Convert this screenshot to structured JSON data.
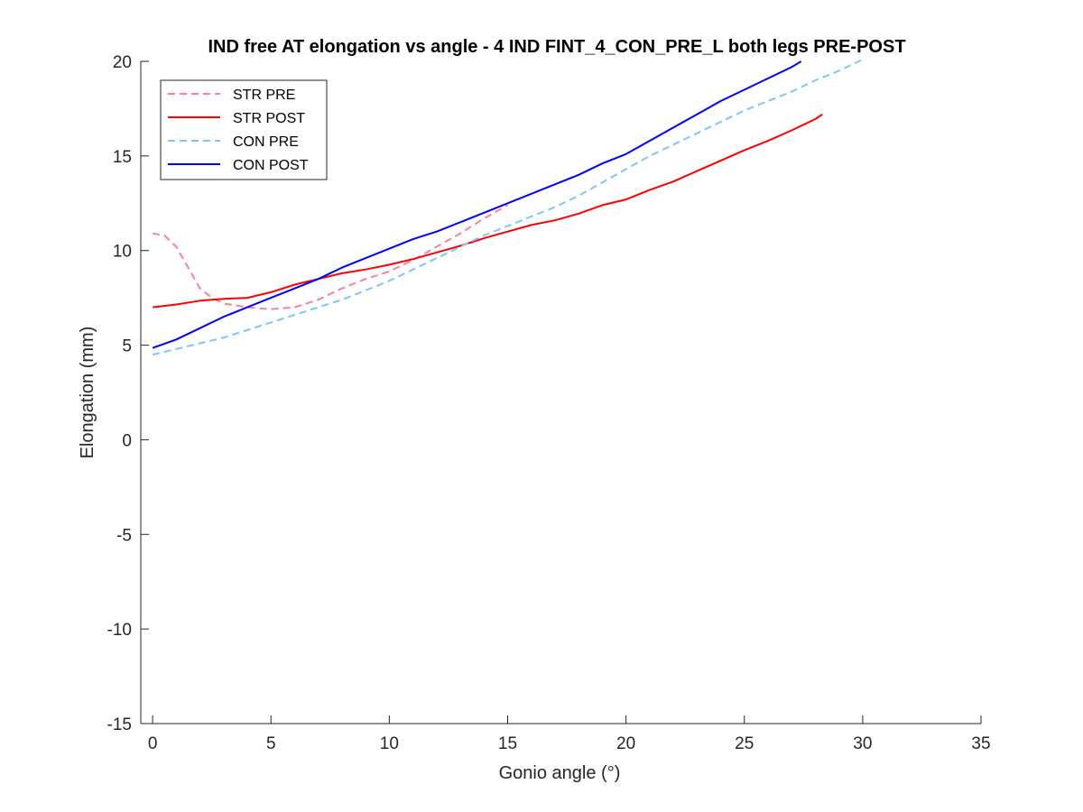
{
  "chart_data": {
    "type": "line",
    "title": "IND free AT elongation vs angle - 4 IND FINT_4_CON_PRE_L both legs PRE-POST",
    "xlabel": "Gonio angle (°)",
    "ylabel": "Elongation (mm)",
    "xlim": [
      -0.5,
      35
    ],
    "ylim": [
      -15,
      20
    ],
    "xticks": [
      0,
      5,
      10,
      15,
      20,
      25,
      30,
      35
    ],
    "yticks": [
      -15,
      -10,
      -5,
      0,
      5,
      10,
      15,
      20
    ],
    "xtick_labels": [
      "0",
      "5",
      "10",
      "15",
      "20",
      "25",
      "30",
      "35"
    ],
    "ytick_labels": [
      "-15",
      "-10",
      "-5",
      "0",
      "5",
      "10",
      "15",
      "20"
    ],
    "grid": false,
    "legend_position": "top-left",
    "series": [
      {
        "name": "STR PRE",
        "color": "#ff7f9f",
        "dash": "dashed",
        "x": [
          0,
          0.5,
          1,
          1.5,
          2,
          2.5,
          3,
          3.5,
          4,
          5,
          6,
          7,
          8,
          9,
          10,
          11,
          12,
          13,
          14,
          15
        ],
        "y": [
          10.9,
          10.8,
          10.2,
          9.1,
          8.0,
          7.5,
          7.2,
          7.1,
          7.0,
          6.9,
          7.0,
          7.4,
          8.0,
          8.5,
          8.9,
          9.5,
          10.2,
          10.9,
          11.7,
          12.4
        ]
      },
      {
        "name": "STR POST",
        "color": "#ff0000",
        "dash": "solid",
        "x": [
          0,
          1,
          2,
          3,
          4,
          5,
          6,
          7,
          8,
          9,
          10,
          11,
          12,
          13,
          14,
          15,
          16,
          17,
          18,
          19,
          20,
          21,
          22,
          23,
          24,
          25,
          26,
          27,
          28,
          28.3
        ],
        "y": [
          7.0,
          7.15,
          7.35,
          7.45,
          7.5,
          7.8,
          8.2,
          8.5,
          8.8,
          9.0,
          9.25,
          9.55,
          9.9,
          10.25,
          10.65,
          11.0,
          11.35,
          11.6,
          11.95,
          12.4,
          12.7,
          13.2,
          13.65,
          14.2,
          14.75,
          15.3,
          15.8,
          16.35,
          16.95,
          17.2
        ]
      },
      {
        "name": "CON PRE",
        "color": "#7ec8f7",
        "dash": "dashed",
        "x": [
          0,
          1,
          2,
          3,
          4,
          5,
          6,
          7,
          8,
          9,
          10,
          11,
          12,
          13,
          14,
          15,
          16,
          17,
          18,
          19,
          20,
          21,
          22,
          23,
          24,
          25,
          26,
          27,
          28,
          29,
          30
        ],
        "y": [
          4.5,
          4.8,
          5.1,
          5.4,
          5.8,
          6.2,
          6.6,
          7.0,
          7.4,
          7.9,
          8.4,
          9.0,
          9.6,
          10.2,
          10.8,
          11.3,
          11.8,
          12.3,
          12.9,
          13.6,
          14.3,
          15.0,
          15.6,
          16.2,
          16.8,
          17.4,
          17.9,
          18.4,
          19.0,
          19.5,
          20.1
        ]
      },
      {
        "name": "CON POST",
        "color": "#0000ff",
        "dash": "solid",
        "x": [
          0,
          1,
          2,
          3,
          4,
          5,
          6,
          7,
          8,
          9,
          10,
          11,
          12,
          13,
          14,
          15,
          16,
          17,
          18,
          19,
          20,
          21,
          22,
          23,
          24,
          25,
          26,
          27,
          27.4
        ],
        "y": [
          4.85,
          5.3,
          5.9,
          6.5,
          7.0,
          7.5,
          8.0,
          8.5,
          9.1,
          9.6,
          10.1,
          10.6,
          11.0,
          11.5,
          12.0,
          12.5,
          13.0,
          13.5,
          14.0,
          14.6,
          15.1,
          15.8,
          16.5,
          17.2,
          17.9,
          18.5,
          19.1,
          19.7,
          20.0
        ]
      }
    ]
  }
}
